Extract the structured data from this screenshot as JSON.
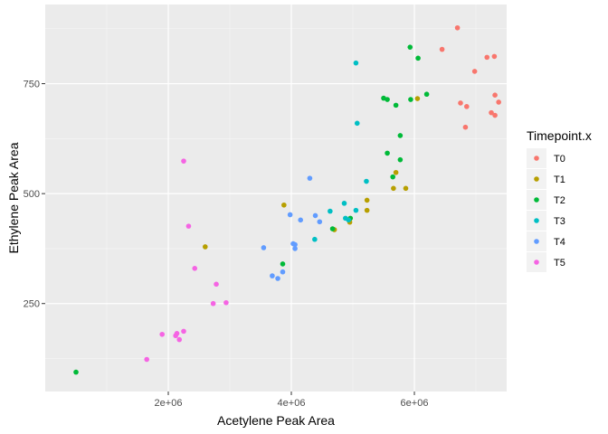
{
  "chart_data": {
    "type": "scatter",
    "xlabel": "Acetylene Peak Area",
    "ylabel": "Ethylene Peak Area",
    "xlim": [
      0,
      7500000
    ],
    "ylim": [
      50,
      930
    ],
    "x_ticks": [
      2000000,
      4000000,
      6000000
    ],
    "x_tick_labels": [
      "2e+06",
      "4e+06",
      "6e+06"
    ],
    "x_minor_ticks": [
      1000000,
      3000000,
      5000000,
      7000000
    ],
    "y_ticks": [
      250,
      500,
      750
    ],
    "y_tick_labels": [
      "250",
      "500",
      "750"
    ],
    "y_minor_ticks": [
      125,
      375,
      625,
      875
    ],
    "grid": true,
    "legend": {
      "title": "Timepoint.x",
      "position": "right"
    },
    "series": [
      {
        "name": "T0",
        "color": "#F8766D",
        "points": [
          [
            6700000,
            877
          ],
          [
            6450000,
            828
          ],
          [
            7180000,
            810
          ],
          [
            7300000,
            812
          ],
          [
            6980000,
            778
          ],
          [
            7310000,
            724
          ],
          [
            7370000,
            708
          ],
          [
            6750000,
            706
          ],
          [
            6850000,
            698
          ],
          [
            7250000,
            684
          ],
          [
            7310000,
            678
          ],
          [
            6830000,
            651
          ]
        ]
      },
      {
        "name": "T1",
        "color": "#B79F00",
        "points": [
          [
            6050000,
            716
          ],
          [
            5700000,
            548
          ],
          [
            5230000,
            485
          ],
          [
            5660000,
            512
          ],
          [
            5860000,
            512
          ],
          [
            5230000,
            462
          ],
          [
            4950000,
            435
          ],
          [
            4700000,
            418
          ],
          [
            3880000,
            474
          ],
          [
            2600000,
            379
          ]
        ]
      },
      {
        "name": "T2",
        "color": "#00BA38",
        "points": [
          [
            5930000,
            833
          ],
          [
            6060000,
            808
          ],
          [
            6200000,
            726
          ],
          [
            5940000,
            714
          ],
          [
            5500000,
            717
          ],
          [
            5560000,
            714
          ],
          [
            5700000,
            701
          ],
          [
            5770000,
            632
          ],
          [
            5560000,
            592
          ],
          [
            5770000,
            577
          ],
          [
            5650000,
            538
          ],
          [
            4960000,
            444
          ],
          [
            4670000,
            420
          ],
          [
            3860000,
            340
          ],
          [
            500000,
            94
          ]
        ]
      },
      {
        "name": "T3",
        "color": "#00BFC4",
        "points": [
          [
            5050000,
            797
          ],
          [
            5070000,
            660
          ],
          [
            5220000,
            528
          ],
          [
            4860000,
            478
          ],
          [
            5050000,
            462
          ],
          [
            4630000,
            460
          ],
          [
            4880000,
            444
          ],
          [
            4930000,
            440
          ],
          [
            4380000,
            396
          ]
        ]
      },
      {
        "name": "T4",
        "color": "#619CFF",
        "points": [
          [
            4300000,
            535
          ],
          [
            3980000,
            452
          ],
          [
            4390000,
            450
          ],
          [
            4460000,
            436
          ],
          [
            4150000,
            440
          ],
          [
            4030000,
            386
          ],
          [
            4060000,
            384
          ],
          [
            4060000,
            375
          ],
          [
            3550000,
            377
          ],
          [
            3690000,
            313
          ],
          [
            3780000,
            307
          ],
          [
            3860000,
            322
          ]
        ]
      },
      {
        "name": "T5",
        "color": "#F564E3",
        "points": [
          [
            2250000,
            574
          ],
          [
            2330000,
            426
          ],
          [
            2430000,
            330
          ],
          [
            2780000,
            294
          ],
          [
            2730000,
            250
          ],
          [
            2940000,
            252
          ],
          [
            2250000,
            187
          ],
          [
            2140000,
            182
          ],
          [
            2120000,
            177
          ],
          [
            1900000,
            180
          ],
          [
            2180000,
            168
          ],
          [
            1650000,
            123
          ]
        ]
      }
    ]
  }
}
